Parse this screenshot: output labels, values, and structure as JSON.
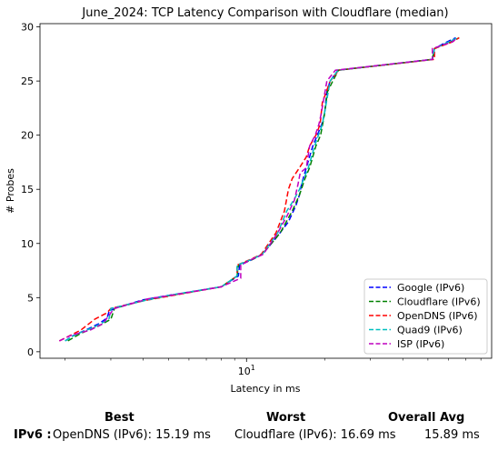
{
  "chart_data": {
    "type": "line",
    "title": "June_2024: TCP Latency Comparison with Cloudflare (median)",
    "xlabel": "Latency in ms",
    "ylabel": "# Probes",
    "xscale": "log",
    "xlim": [
      1.6,
      88
    ],
    "ylim": [
      -0.6,
      30.3
    ],
    "yticks": [
      0,
      5,
      10,
      15,
      20,
      25,
      30
    ],
    "xticks": [
      {
        "value": 10,
        "label": "10^1"
      }
    ],
    "legend_position": "lower-right",
    "series": [
      {
        "name": "Google (IPv6)",
        "color": "#0000ff",
        "points": [
          [
            2.0,
            1
          ],
          [
            2.15,
            1.5
          ],
          [
            2.4,
            2
          ],
          [
            2.7,
            2.6
          ],
          [
            2.9,
            3.1
          ],
          [
            2.95,
            3.7
          ],
          [
            3.1,
            4
          ],
          [
            4.0,
            4.8
          ],
          [
            5.0,
            5.2
          ],
          [
            8.0,
            6.0
          ],
          [
            9.3,
            7.0
          ],
          [
            9.4,
            8.0
          ],
          [
            10.5,
            8.5
          ],
          [
            11.5,
            9
          ],
          [
            13.0,
            10.5
          ],
          [
            14.5,
            12
          ],
          [
            15.5,
            13.5
          ],
          [
            16.0,
            14.5
          ],
          [
            16.3,
            15.5
          ],
          [
            17.0,
            17
          ],
          [
            18.0,
            19
          ],
          [
            19.5,
            21
          ],
          [
            20.0,
            22
          ],
          [
            20.4,
            24
          ],
          [
            21.0,
            25
          ],
          [
            22.5,
            26
          ],
          [
            52,
            27
          ],
          [
            53,
            28
          ],
          [
            58,
            28.5
          ],
          [
            64,
            29
          ]
        ]
      },
      {
        "name": "Cloudflare (IPv6)",
        "color": "#008000",
        "points": [
          [
            2.05,
            1
          ],
          [
            2.3,
            1.7
          ],
          [
            2.7,
            2.4
          ],
          [
            3.0,
            3
          ],
          [
            3.1,
            4
          ],
          [
            4.1,
            4.8
          ],
          [
            5.1,
            5.2
          ],
          [
            8.0,
            6.0
          ],
          [
            9.2,
            7.0
          ],
          [
            9.3,
            8.0
          ],
          [
            10.5,
            8.5
          ],
          [
            11.5,
            9
          ],
          [
            13.5,
            11
          ],
          [
            15.0,
            13
          ],
          [
            16.0,
            14.5
          ],
          [
            16.8,
            16
          ],
          [
            17.5,
            17
          ],
          [
            18.5,
            19
          ],
          [
            19.3,
            20
          ],
          [
            20.0,
            22
          ],
          [
            20.5,
            24
          ],
          [
            21.5,
            25
          ],
          [
            22.6,
            26
          ],
          [
            52,
            27
          ],
          [
            53,
            28
          ],
          [
            60,
            28.5
          ],
          [
            66,
            29
          ]
        ]
      },
      {
        "name": "OpenDNS (IPv6)",
        "color": "#ff0000",
        "points": [
          [
            1.9,
            1
          ],
          [
            2.3,
            2
          ],
          [
            2.6,
            3
          ],
          [
            2.9,
            3.6
          ],
          [
            3.0,
            4
          ],
          [
            4.0,
            4.7
          ],
          [
            5.2,
            5.2
          ],
          [
            8.0,
            6.0
          ],
          [
            9.2,
            7.0
          ],
          [
            9.2,
            8.0
          ],
          [
            10.3,
            8.5
          ],
          [
            11.4,
            9
          ],
          [
            13.0,
            11
          ],
          [
            14.0,
            13
          ],
          [
            14.5,
            15
          ],
          [
            15.0,
            16
          ],
          [
            16.0,
            17
          ],
          [
            17.0,
            18
          ],
          [
            17.5,
            19
          ],
          [
            18.5,
            20
          ],
          [
            19.2,
            21
          ],
          [
            19.6,
            23
          ],
          [
            21.0,
            25
          ],
          [
            22.7,
            26
          ],
          [
            53,
            27
          ],
          [
            53,
            28
          ],
          [
            62,
            28.6
          ],
          [
            66,
            29
          ]
        ]
      },
      {
        "name": "Quad9 (IPv6)",
        "color": "#00bfbf",
        "points": [
          [
            2.0,
            1
          ],
          [
            2.2,
            1.6
          ],
          [
            2.6,
            2.3
          ],
          [
            2.95,
            3.0
          ],
          [
            3.0,
            4
          ],
          [
            4.0,
            4.7
          ],
          [
            5.0,
            5.2
          ],
          [
            8.0,
            6.0
          ],
          [
            9.2,
            7.0
          ],
          [
            9.2,
            8.0
          ],
          [
            10.4,
            8.5
          ],
          [
            11.5,
            9
          ],
          [
            13.2,
            11
          ],
          [
            14.3,
            13
          ],
          [
            15.2,
            14
          ],
          [
            16.0,
            15
          ],
          [
            17.3,
            17
          ],
          [
            18.3,
            19
          ],
          [
            19.6,
            21
          ],
          [
            20.3,
            23
          ],
          [
            21.0,
            25
          ],
          [
            22.5,
            26
          ],
          [
            52,
            27
          ],
          [
            53,
            28
          ],
          [
            60,
            28.6
          ],
          [
            65,
            29
          ]
        ]
      },
      {
        "name": "ISP (IPv6)",
        "color": "#bf00bf",
        "points": [
          [
            1.9,
            1
          ],
          [
            2.1,
            1.5
          ],
          [
            2.5,
            2
          ],
          [
            2.8,
            2.6
          ],
          [
            3.0,
            3.6
          ],
          [
            3.1,
            4
          ],
          [
            4.2,
            4.9
          ],
          [
            5.1,
            5.2
          ],
          [
            8.0,
            6.0
          ],
          [
            9.5,
            6.8
          ],
          [
            9.5,
            8.0
          ],
          [
            10.4,
            8.5
          ],
          [
            11.6,
            9
          ],
          [
            13.2,
            11
          ],
          [
            14.3,
            12.5
          ],
          [
            15.3,
            14
          ],
          [
            15.8,
            15.5
          ],
          [
            16.1,
            16.5
          ],
          [
            17.0,
            17
          ],
          [
            17.5,
            19
          ],
          [
            18.4,
            20
          ],
          [
            19.0,
            21
          ],
          [
            19.4,
            22
          ],
          [
            20.4,
            25
          ],
          [
            22.0,
            26
          ],
          [
            52,
            27
          ],
          [
            52,
            28
          ],
          [
            62,
            28.6
          ],
          [
            65,
            29
          ]
        ]
      }
    ]
  },
  "summary": {
    "best_header": "Best",
    "worst_header": "Worst",
    "avg_header": "Overall Avg",
    "row_label": "IPv6 :",
    "best_value": "OpenDNS (IPv6): 15.19 ms",
    "worst_value": "Cloudflare (IPv6): 16.69 ms",
    "avg_value": "15.89 ms"
  }
}
